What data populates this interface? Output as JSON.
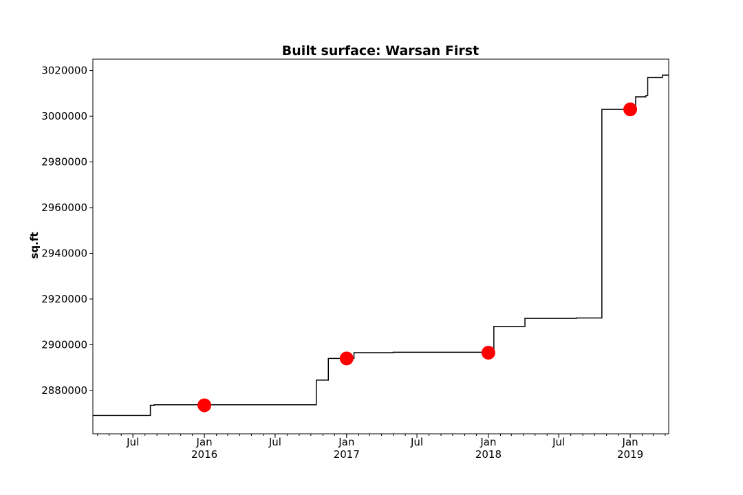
{
  "chart_data": {
    "type": "line",
    "line_style": "step",
    "title": "Built surface: Warsan First",
    "xlabel": "",
    "ylabel": "sq.ft",
    "xlim": [
      "2015-03-20",
      "2019-04-10"
    ],
    "ylim": [
      2861000,
      3025000
    ],
    "grid": false,
    "legend": "none",
    "line_color": "#000000",
    "marker_color": "#ff0000",
    "y_ticks": [
      2880000,
      2900000,
      2920000,
      2940000,
      2960000,
      2980000,
      3000000,
      3020000
    ],
    "x_ticks": [
      {
        "date": "2015-07-01",
        "label": "Jul",
        "year": ""
      },
      {
        "date": "2016-01-01",
        "label": "Jan",
        "year": "2016"
      },
      {
        "date": "2016-07-01",
        "label": "Jul",
        "year": ""
      },
      {
        "date": "2017-01-01",
        "label": "Jan",
        "year": "2017"
      },
      {
        "date": "2017-07-01",
        "label": "Jul",
        "year": ""
      },
      {
        "date": "2018-01-01",
        "label": "Jan",
        "year": "2018"
      },
      {
        "date": "2018-07-01",
        "label": "Jul",
        "year": ""
      },
      {
        "date": "2019-01-01",
        "label": "Jan",
        "year": "2019"
      }
    ],
    "series": [
      {
        "name": "",
        "kind": "step-line",
        "points": [
          {
            "x": "2015-03-20",
            "y": 2869000
          },
          {
            "x": "2015-08-15",
            "y": 2873500
          },
          {
            "x": "2015-08-25",
            "y": 2873700
          },
          {
            "x": "2016-10-15",
            "y": 2884500
          },
          {
            "x": "2016-11-15",
            "y": 2894000
          },
          {
            "x": "2017-01-20",
            "y": 2896500
          },
          {
            "x": "2017-05-01",
            "y": 2896700
          },
          {
            "x": "2018-01-15",
            "y": 2908000
          },
          {
            "x": "2018-04-05",
            "y": 2911500
          },
          {
            "x": "2018-08-15",
            "y": 2911700
          },
          {
            "x": "2018-10-20",
            "y": 3003000
          },
          {
            "x": "2019-01-15",
            "y": 3008500
          },
          {
            "x": "2019-02-10",
            "y": 3009000
          },
          {
            "x": "2019-02-15",
            "y": 3017000
          },
          {
            "x": "2019-03-25",
            "y": 3018000
          },
          {
            "x": "2019-04-10",
            "y": 3018000
          }
        ]
      },
      {
        "name": "",
        "kind": "markers",
        "points": [
          {
            "x": "2016-01-01",
            "y": 2873500
          },
          {
            "x": "2017-01-01",
            "y": 2894000
          },
          {
            "x": "2018-01-01",
            "y": 2896500
          },
          {
            "x": "2019-01-01",
            "y": 3003000
          }
        ]
      }
    ]
  }
}
